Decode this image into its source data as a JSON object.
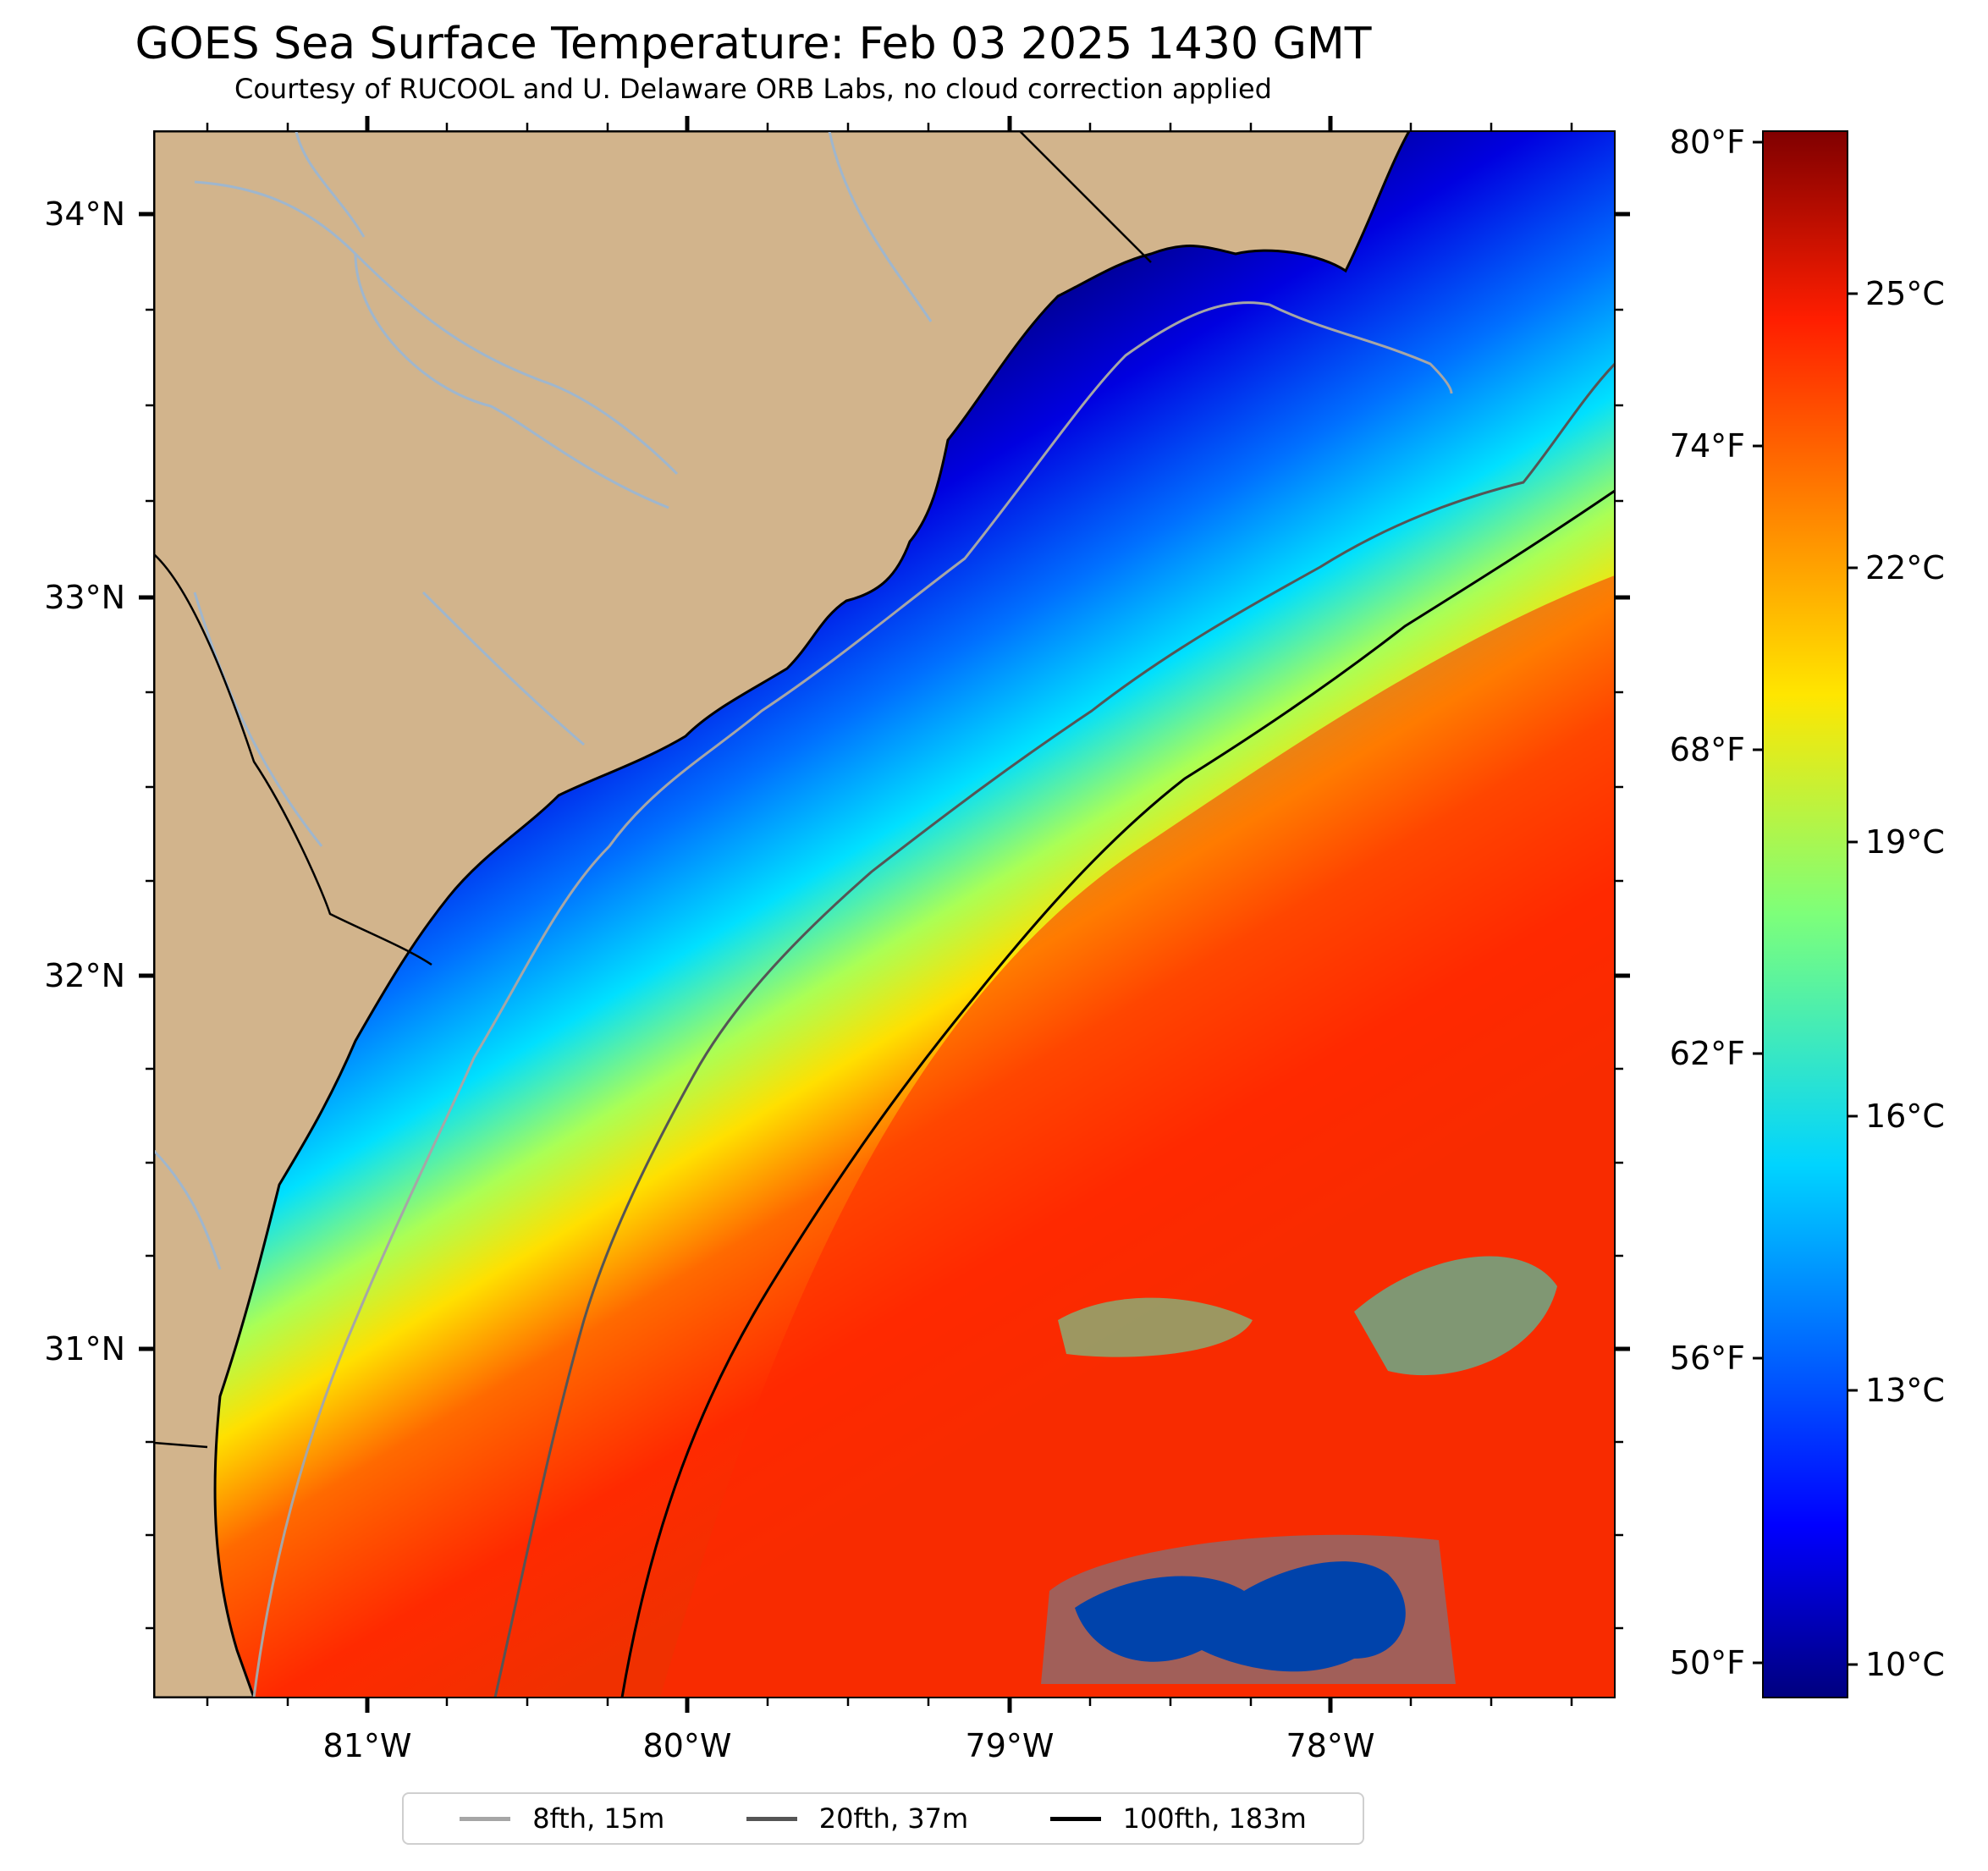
{
  "header": {
    "title": "GOES Sea Surface Temperature: Feb 03 2025 1430 GMT",
    "subtitle": "Courtesy of RUCOOL and U. Delaware ORB Labs, no cloud correction applied"
  },
  "map": {
    "longitude_labels": [
      "81°W",
      "80°W",
      "79°W",
      "78°W"
    ],
    "latitude_labels": [
      "34°N",
      "33°N",
      "32°N",
      "31°N"
    ],
    "land_color": "#d2b48c",
    "coastline_color": "#000000",
    "river_color": "#9fb6cd"
  },
  "colorbar": {
    "fahrenheit_labels": [
      "80°F",
      "74°F",
      "68°F",
      "62°F",
      "56°F",
      "50°F"
    ],
    "celsius_labels": [
      "25°C",
      "22°C",
      "19°C",
      "16°C",
      "13°C",
      "10°C"
    ],
    "colormap": "jet"
  },
  "legend": {
    "items": [
      {
        "label": "8fth, 15m",
        "color": "#a6a6a6"
      },
      {
        "label": "20fth, 37m",
        "color": "#555555"
      },
      {
        "label": "100fth, 183m",
        "color": "#000000"
      }
    ]
  }
}
